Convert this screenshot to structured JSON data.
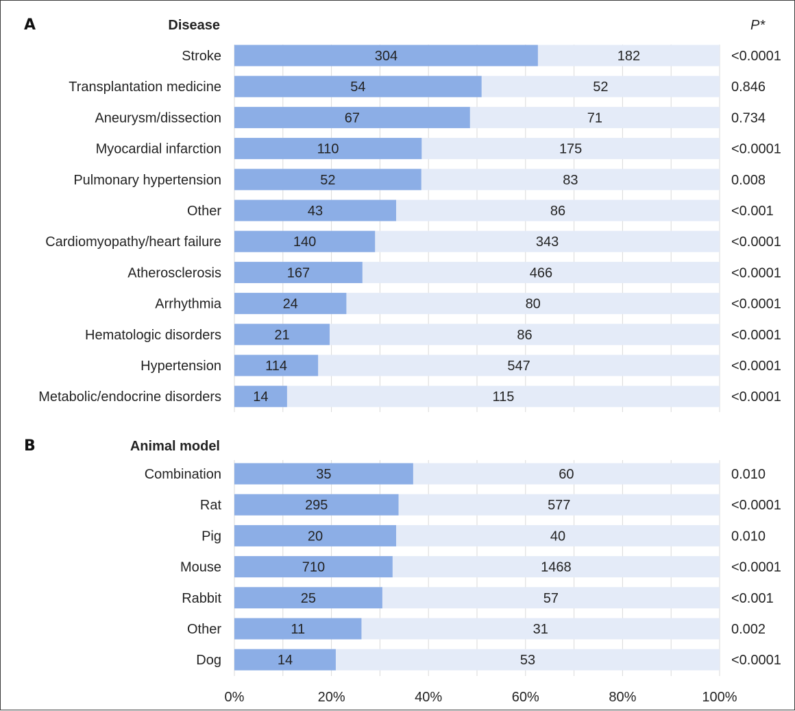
{
  "p_header": "P*",
  "colors": {
    "primary": "#8caee6",
    "secondary": "#e4ebf8",
    "grid": "#d9d9d9"
  },
  "chart_data": [
    {
      "type": "bar",
      "orientation": "horizontal",
      "stacked": "percent",
      "panel": "A",
      "title": "Disease",
      "categories": [
        "Stroke",
        "Transplantation medicine",
        "Aneurysm/dissection",
        "Myocardial infarction",
        "Pulmonary hypertension",
        "Other",
        "Cardiomyopathy/heart failure",
        "Atherosclerosis",
        "Arrhythmia",
        "Hematologic disorders",
        "Hypertension",
        "Metabolic/endocrine disorders"
      ],
      "series": [
        {
          "values": [
            304,
            54,
            67,
            110,
            52,
            43,
            140,
            167,
            24,
            21,
            114,
            14
          ]
        },
        {
          "values": [
            182,
            52,
            71,
            175,
            83,
            86,
            343,
            466,
            80,
            86,
            547,
            115
          ]
        }
      ],
      "p_values": [
        "<0.0001",
        "0.846",
        "0.734",
        "<0.0001",
        "0.008",
        "<0.001",
        "<0.0001",
        "<0.0001",
        "<0.0001",
        "<0.0001",
        "<0.0001",
        "<0.0001"
      ],
      "xlim": [
        0,
        100
      ],
      "grid": true
    },
    {
      "type": "bar",
      "orientation": "horizontal",
      "stacked": "percent",
      "panel": "B",
      "title": "Animal model",
      "categories": [
        "Combination",
        "Rat",
        "Pig",
        "Mouse",
        "Rabbit",
        "Other",
        "Dog"
      ],
      "series": [
        {
          "values": [
            35,
            295,
            20,
            710,
            25,
            11,
            14
          ]
        },
        {
          "values": [
            60,
            577,
            40,
            1468,
            57,
            31,
            53
          ]
        }
      ],
      "p_values": [
        "0.010",
        "<0.0001",
        "0.010",
        "<0.0001",
        "<0.001",
        "0.002",
        "<0.0001"
      ],
      "xlim": [
        0,
        100
      ],
      "xticks": [
        "0%",
        "20%",
        "40%",
        "60%",
        "80%",
        "100%"
      ],
      "grid": true
    }
  ]
}
